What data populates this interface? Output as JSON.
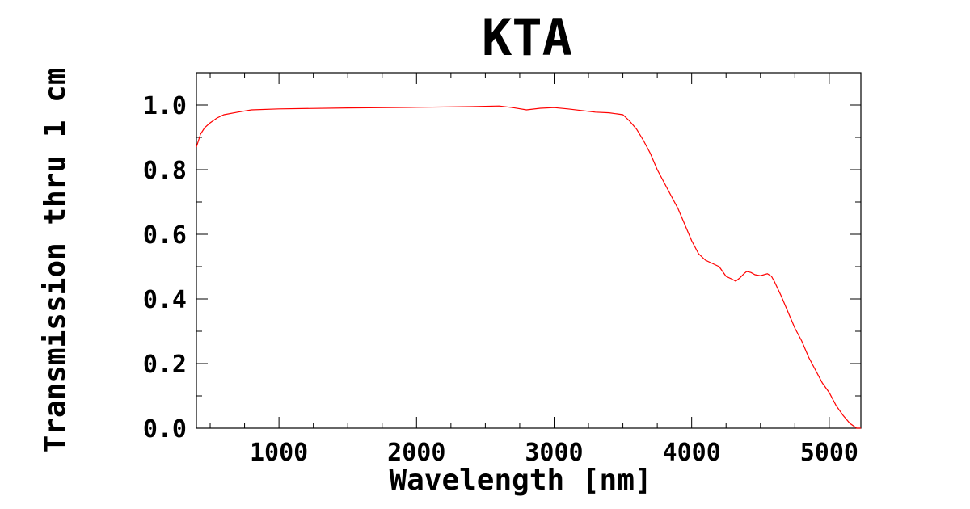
{
  "chart_data": {
    "type": "line",
    "title": "KTA",
    "xlabel": "Wavelength [nm]",
    "ylabel": "Transmission thru 1 cm",
    "xlim": [
      400,
      5230
    ],
    "ylim": [
      0.0,
      1.1
    ],
    "xticks": [
      1000,
      2000,
      3000,
      4000,
      5000
    ],
    "xtick_labels": [
      "1000",
      "2000",
      "3000",
      "4000",
      "5000"
    ],
    "yticks": [
      0.0,
      0.2,
      0.4,
      0.6,
      0.8,
      1.0
    ],
    "ytick_labels": [
      "0.0",
      "0.2",
      "0.4",
      "0.6",
      "0.8",
      "1.0"
    ],
    "xminor_step": 250,
    "yminor_step": 0.1,
    "grid": false,
    "series": [
      {
        "color": "#ff0000",
        "x": [
          400,
          430,
          460,
          500,
          550,
          600,
          700,
          800,
          1000,
          1500,
          2000,
          2400,
          2600,
          2700,
          2800,
          2900,
          3000,
          3100,
          3200,
          3300,
          3400,
          3500,
          3550,
          3600,
          3650,
          3700,
          3750,
          3800,
          3850,
          3900,
          3950,
          4000,
          4050,
          4100,
          4150,
          4200,
          4250,
          4300,
          4320,
          4350,
          4380,
          4400,
          4430,
          4460,
          4500,
          4550,
          4580,
          4600,
          4650,
          4700,
          4750,
          4800,
          4850,
          4900,
          4950,
          5000,
          5050,
          5100,
          5150,
          5200,
          5230
        ],
        "y": [
          0.87,
          0.91,
          0.93,
          0.945,
          0.96,
          0.97,
          0.978,
          0.985,
          0.988,
          0.991,
          0.993,
          0.995,
          0.997,
          0.992,
          0.985,
          0.99,
          0.992,
          0.988,
          0.983,
          0.978,
          0.976,
          0.97,
          0.95,
          0.925,
          0.89,
          0.85,
          0.8,
          0.76,
          0.72,
          0.68,
          0.63,
          0.58,
          0.54,
          0.52,
          0.51,
          0.5,
          0.47,
          0.46,
          0.455,
          0.465,
          0.478,
          0.485,
          0.482,
          0.475,
          0.472,
          0.478,
          0.47,
          0.455,
          0.41,
          0.36,
          0.31,
          0.27,
          0.22,
          0.18,
          0.14,
          0.11,
          0.07,
          0.04,
          0.015,
          0.0,
          0.0
        ]
      }
    ]
  }
}
